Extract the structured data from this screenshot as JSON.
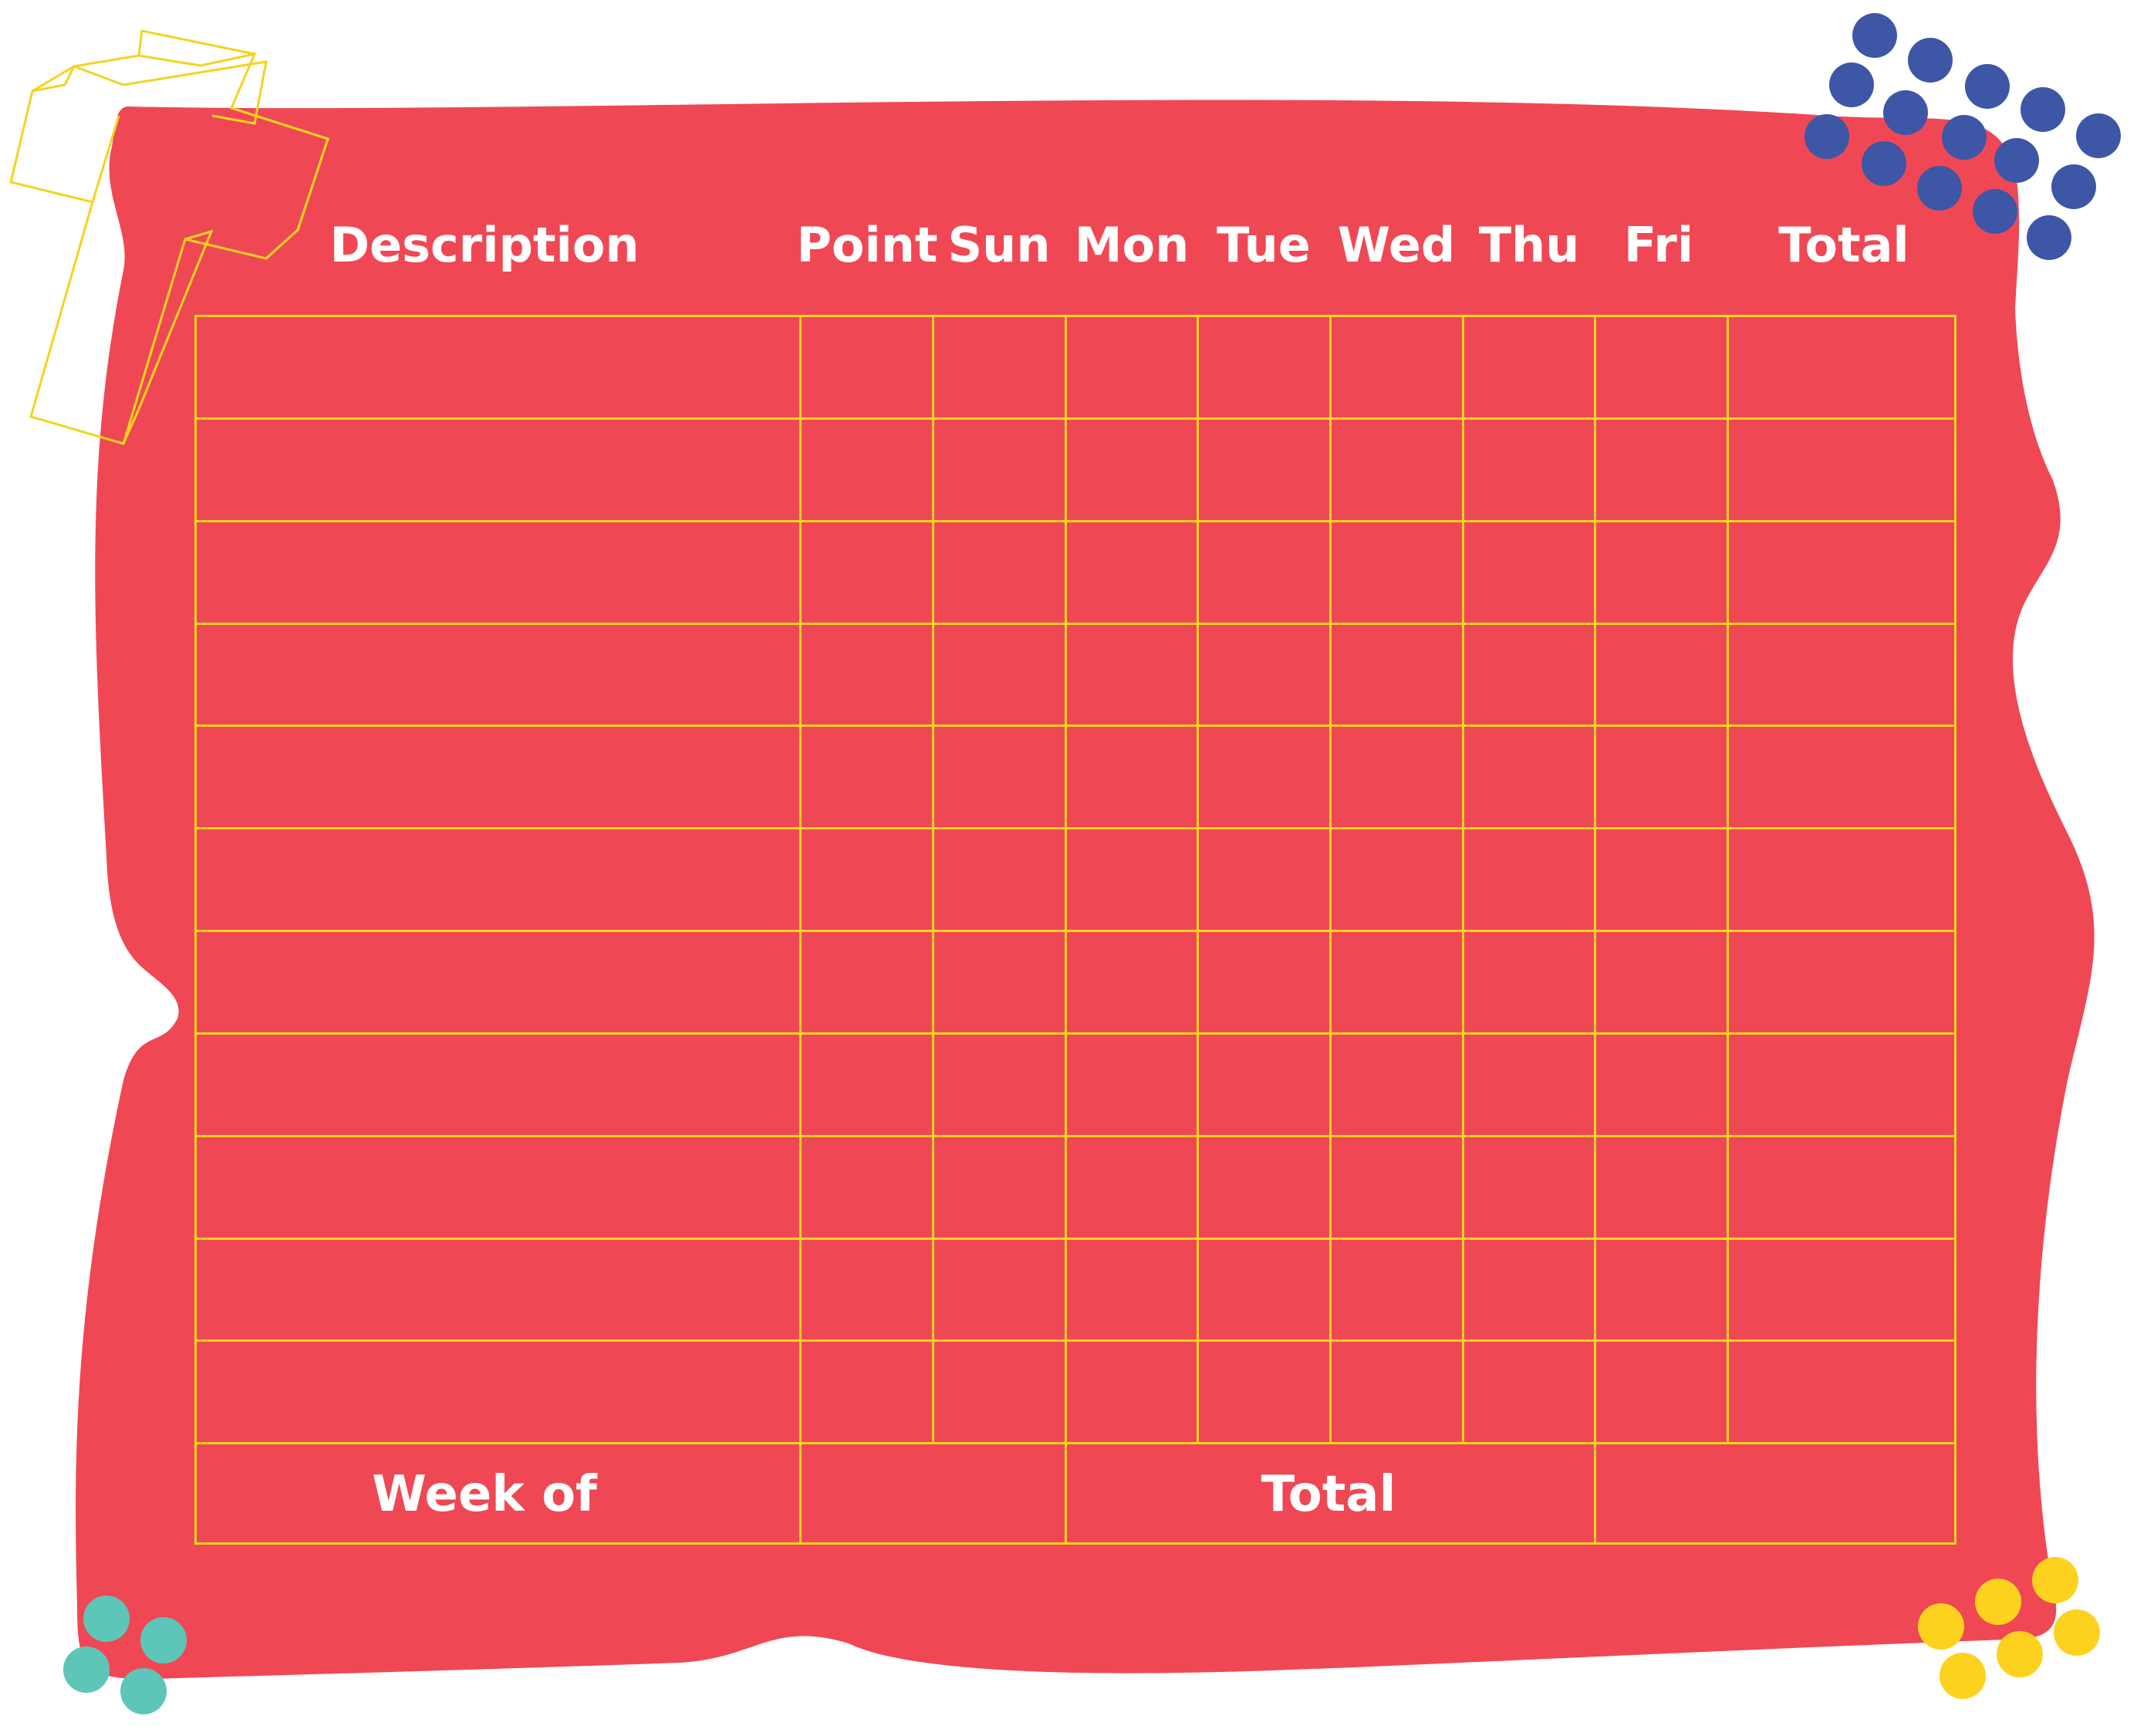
{
  "chart_header": {
    "description": "Description",
    "point": "Point",
    "days": [
      "Sun",
      "Mon",
      "Tue",
      "Wed",
      "Thu",
      "Fri"
    ],
    "total": "Total"
  },
  "footer": {
    "week_of": "Week of",
    "total": "Total"
  },
  "table": {
    "body_rows": 11
  },
  "colors": {
    "background": "#ffffff",
    "panel": "#ef4854",
    "grid_line": "#f5d31f",
    "text": "#ffffff",
    "dots_blue": "#3e56a6",
    "dots_teal": "#5dc6b8",
    "dots_yellow": "#fdd21f",
    "cube_outline": "#f5d31f"
  }
}
